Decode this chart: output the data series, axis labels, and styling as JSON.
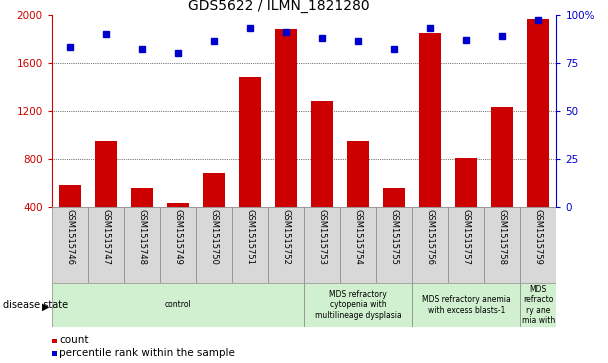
{
  "title": "GDS5622 / ILMN_1821280",
  "samples": [
    "GSM1515746",
    "GSM1515747",
    "GSM1515748",
    "GSM1515749",
    "GSM1515750",
    "GSM1515751",
    "GSM1515752",
    "GSM1515753",
    "GSM1515754",
    "GSM1515755",
    "GSM1515756",
    "GSM1515757",
    "GSM1515758",
    "GSM1515759"
  ],
  "counts": [
    580,
    950,
    560,
    430,
    680,
    1480,
    1880,
    1280,
    950,
    560,
    1850,
    810,
    1230,
    1960
  ],
  "percentiles": [
    83,
    90,
    82,
    80,
    86,
    93,
    91,
    88,
    86,
    82,
    93,
    87,
    89,
    97
  ],
  "bar_color": "#cc0000",
  "dot_color": "#0000cc",
  "ylim_left": [
    400,
    2000
  ],
  "ylim_right": [
    0,
    100
  ],
  "yticks_left": [
    400,
    800,
    1200,
    1600,
    2000
  ],
  "yticks_right": [
    0,
    25,
    50,
    75,
    100
  ],
  "ytick_labels_right": [
    "0",
    "25",
    "50",
    "75",
    "100%"
  ],
  "grid_values": [
    800,
    1200,
    1600
  ],
  "disease_groups": [
    {
      "label": "control",
      "start": 0,
      "end": 7,
      "color": "#d0f0d0"
    },
    {
      "label": "MDS refractory\ncytopenia with\nmultilineage dysplasia",
      "start": 7,
      "end": 10,
      "color": "#d0f0d0"
    },
    {
      "label": "MDS refractory anemia\nwith excess blasts-1",
      "start": 10,
      "end": 13,
      "color": "#d0f0d0"
    },
    {
      "label": "MDS\nrefracto\nry ane\nmia with",
      "start": 13,
      "end": 14,
      "color": "#d0f0d0"
    }
  ],
  "disease_state_label": "disease state",
  "legend_count_label": "count",
  "legend_pct_label": "percentile rank within the sample",
  "tick_label_color_left": "#cc0000",
  "tick_label_color_right": "#0000cc",
  "sample_bg_color": "#d8d8d8",
  "bar_width": 0.6
}
